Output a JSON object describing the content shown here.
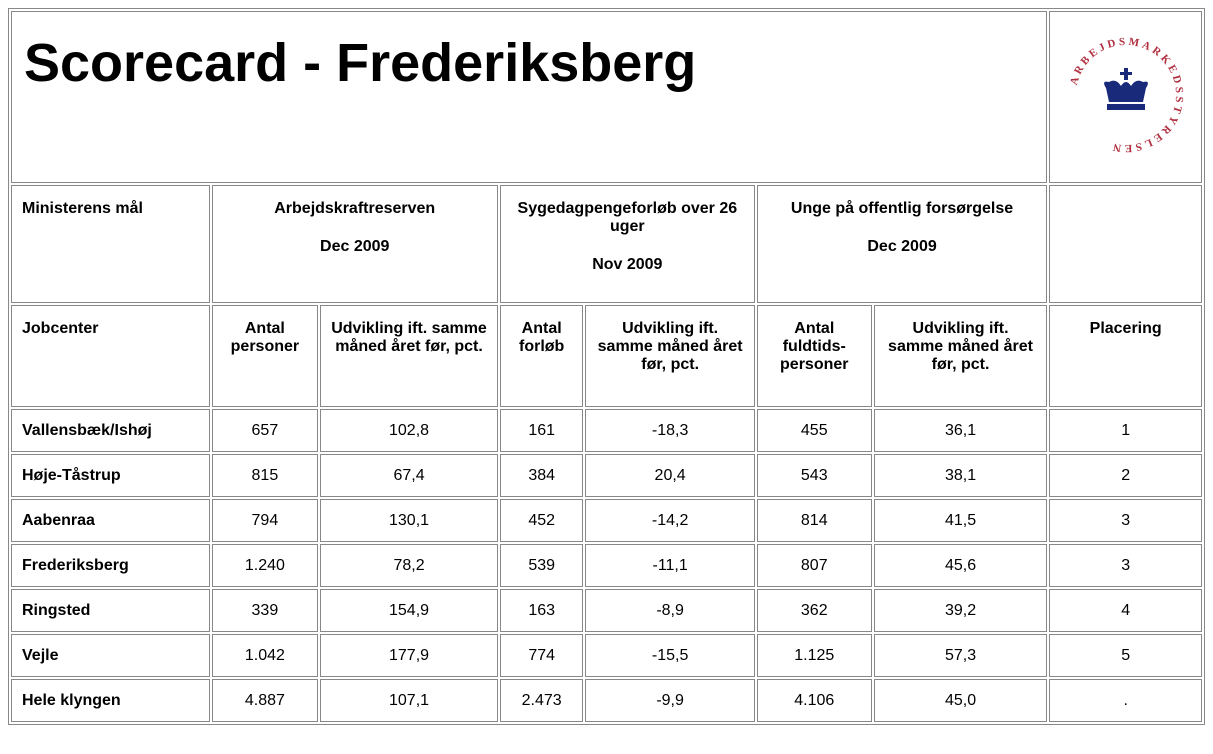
{
  "header": {
    "title": "Scorecard - Frederiksberg",
    "logo": "ARBEJDSMARKEDSSTYRELSEN"
  },
  "table": {
    "goal_label": "Ministerens mål",
    "groups": [
      {
        "title": "Arbejdskraftreserven",
        "date": "Dec 2009"
      },
      {
        "title": "Sygedagpengeforløb over 26 uger",
        "date": "Nov 2009"
      },
      {
        "title": "Unge på offentlig forsørgelse",
        "date": "Dec 2009"
      }
    ],
    "row_label": "Jobcenter",
    "columns": [
      "Antal personer",
      "Udvikling ift. samme måned året før, pct.",
      "Antal forløb",
      "Udvikling ift. samme måned året før, pct.",
      "Antal fuldtids-personer",
      "Udvikling ift. samme måned året før, pct.",
      "Placering"
    ],
    "rows": [
      [
        "Vallensbæk/Ishøj",
        "657",
        "102,8",
        "161",
        "-18,3",
        "455",
        "36,1",
        "1"
      ],
      [
        "Høje-Tåstrup",
        "815",
        "67,4",
        "384",
        "20,4",
        "543",
        "38,1",
        "2"
      ],
      [
        "Aabenraa",
        "794",
        "130,1",
        "452",
        "-14,2",
        "814",
        "41,5",
        "3"
      ],
      [
        "Frederiksberg",
        "1.240",
        "78,2",
        "539",
        "-11,1",
        "807",
        "45,6",
        "3"
      ],
      [
        "Ringsted",
        "339",
        "154,9",
        "163",
        "-8,9",
        "362",
        "39,2",
        "4"
      ],
      [
        "Vejle",
        "1.042",
        "177,9",
        "774",
        "-15,5",
        "1.125",
        "57,3",
        "5"
      ],
      [
        "Hele klyngen",
        "4.887",
        "107,1",
        "2.473",
        "-9,9",
        "4.106",
        "45,0",
        "."
      ]
    ]
  }
}
